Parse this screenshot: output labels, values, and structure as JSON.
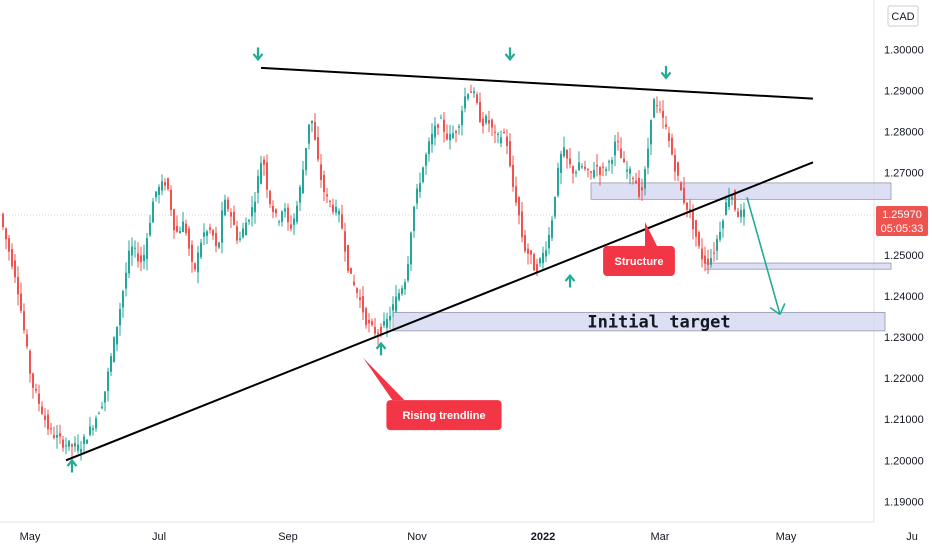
{
  "chart_data": {
    "type": "candlestick",
    "currency_label": "CAD",
    "yaxis": {
      "range": [
        1.185,
        1.312
      ],
      "ticks": [
        "1.30000",
        "1.29000",
        "1.28000",
        "1.27000",
        "1.26000",
        "1.25000",
        "1.24000",
        "1.23000",
        "1.22000",
        "1.21000",
        "1.20000",
        "1.19000"
      ]
    },
    "xaxis": {
      "labels": [
        {
          "text": "May",
          "bar": 9
        },
        {
          "text": "Jul",
          "bar": 52
        },
        {
          "text": "Sep",
          "bar": 95
        },
        {
          "text": "Nov",
          "bar": 138
        },
        {
          "text": "2022",
          "bar": 180,
          "bold": true
        },
        {
          "text": "Mar",
          "bar": 219
        },
        {
          "text": "May",
          "bar": 261
        },
        {
          "text": "Ju",
          "bar": 303
        }
      ]
    },
    "last_price": "1.25970",
    "countdown": "05:05:33",
    "colors": {
      "up": "#26a69a",
      "down": "#ef5350",
      "trend": "#000000",
      "zone": "#d1d4f0",
      "zone_border": "#9598a8",
      "callout": "#f23645",
      "arrow": "#22ab94"
    },
    "candle_path": [
      [
        0,
        1.258
      ],
      [
        5,
        1.244
      ],
      [
        10,
        1.219
      ],
      [
        16,
        1.207
      ],
      [
        21,
        1.204
      ],
      [
        26,
        1.203
      ],
      [
        30,
        1.208
      ],
      [
        34,
        1.215
      ],
      [
        39,
        1.235
      ],
      [
        43,
        1.252
      ],
      [
        47,
        1.248
      ],
      [
        51,
        1.265
      ],
      [
        55,
        1.268
      ],
      [
        58,
        1.255
      ],
      [
        61,
        1.258
      ],
      [
        64,
        1.245
      ],
      [
        67,
        1.255
      ],
      [
        70,
        1.256
      ],
      [
        72,
        1.25
      ],
      [
        74,
        1.263
      ],
      [
        76,
        1.261
      ],
      [
        79,
        1.253
      ],
      [
        81,
        1.257
      ],
      [
        84,
        1.262
      ],
      [
        87,
        1.275
      ],
      [
        89,
        1.264
      ],
      [
        92,
        1.258
      ],
      [
        94,
        1.262
      ],
      [
        96,
        1.256
      ],
      [
        98,
        1.26
      ],
      [
        100,
        1.268
      ],
      [
        103,
        1.285
      ],
      [
        106,
        1.27
      ],
      [
        108,
        1.264
      ],
      [
        110,
        1.262
      ],
      [
        113,
        1.259
      ],
      [
        116,
        1.245
      ],
      [
        119,
        1.24
      ],
      [
        122,
        1.233
      ],
      [
        125,
        1.231
      ],
      [
        128,
        1.233
      ],
      [
        132,
        1.24
      ],
      [
        135,
        1.245
      ],
      [
        137,
        1.26
      ],
      [
        140,
        1.27
      ],
      [
        143,
        1.278
      ],
      [
        146,
        1.283
      ],
      [
        149,
        1.278
      ],
      [
        152,
        1.281
      ],
      [
        155,
        1.29
      ],
      [
        157,
        1.29
      ],
      [
        160,
        1.282
      ],
      [
        162,
        1.283
      ],
      [
        165,
        1.278
      ],
      [
        168,
        1.28
      ],
      [
        170,
        1.268
      ],
      [
        172,
        1.262
      ],
      [
        174,
        1.252
      ],
      [
        176,
        1.25
      ],
      [
        178,
        1.246
      ],
      [
        181,
        1.251
      ],
      [
        183,
        1.256
      ],
      [
        185,
        1.268
      ],
      [
        187,
        1.276
      ],
      [
        189,
        1.272
      ],
      [
        191,
        1.27
      ],
      [
        193,
        1.272
      ],
      [
        196,
        1.269
      ],
      [
        198,
        1.272
      ],
      [
        200,
        1.27
      ],
      [
        203,
        1.273
      ],
      [
        205,
        1.278
      ],
      [
        207,
        1.272
      ],
      [
        209,
        1.27
      ],
      [
        211,
        1.269
      ],
      [
        213,
        1.264
      ],
      [
        215,
        1.272
      ],
      [
        217,
        1.288
      ],
      [
        219,
        1.285
      ],
      [
        221,
        1.282
      ],
      [
        223,
        1.276
      ],
      [
        225,
        1.27
      ],
      [
        227,
        1.264
      ],
      [
        229,
        1.261
      ],
      [
        231,
        1.256
      ],
      [
        233,
        1.25
      ],
      [
        235,
        1.248
      ],
      [
        237,
        1.25
      ],
      [
        239,
        1.255
      ],
      [
        241,
        1.261
      ],
      [
        243,
        1.266
      ],
      [
        245,
        1.26
      ],
      [
        247,
        1.26
      ]
    ],
    "trendlines": [
      {
        "name": "resistance",
        "from": {
          "bar": 86,
          "price": 1.2955
        },
        "to": {
          "bar": 270,
          "price": 1.288
        }
      },
      {
        "name": "rising-trendline",
        "from": {
          "bar": 21,
          "price": 1.2
        },
        "to": {
          "bar": 270,
          "price": 1.2725
        }
      }
    ],
    "zones": [
      {
        "name": "upper-zone",
        "from_bar": 196,
        "to_bar": 296,
        "high": 1.2675,
        "low": 1.2635
      },
      {
        "name": "structure-zone",
        "from_bar": 234,
        "to_bar": 296,
        "high": 1.248,
        "low": 1.2465
      },
      {
        "name": "target-zone",
        "from_bar": 130,
        "to_bar": 294,
        "high": 1.236,
        "low": 1.2315
      }
    ],
    "target_label": "Initial target",
    "forecast_arrow": {
      "from": {
        "bar": 248,
        "price": 1.264
      },
      "to": {
        "bar": 259,
        "price": 1.2355
      }
    },
    "markers": [
      {
        "dir": "up",
        "bar": 23,
        "price": 1.1985
      },
      {
        "dir": "down",
        "bar": 85,
        "price": 1.299
      },
      {
        "dir": "up",
        "bar": 126,
        "price": 1.227
      },
      {
        "dir": "down",
        "bar": 169,
        "price": 1.299
      },
      {
        "dir": "up",
        "bar": 189,
        "price": 1.2435
      },
      {
        "dir": "down",
        "bar": 221,
        "price": 1.2945
      }
    ],
    "callouts": [
      {
        "name": "callout-structure",
        "text": "Structure",
        "bar": 212,
        "price": 1.2485,
        "tip_bar": 214,
        "tip_price": 1.258
      },
      {
        "name": "callout-rising-trendline",
        "text": "Rising trendline",
        "bar": 147,
        "price": 1.211,
        "tip_bar": 120,
        "tip_price": 1.225
      }
    ]
  }
}
